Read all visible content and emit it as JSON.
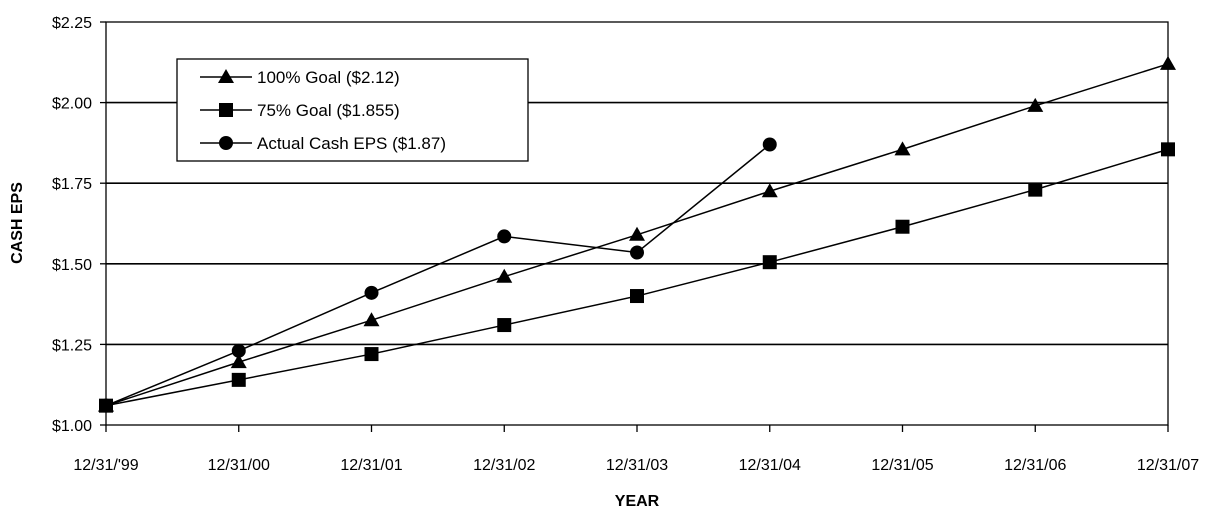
{
  "chart_data": {
    "type": "line",
    "xlabel": "YEAR",
    "ylabel": "CASH EPS",
    "categories": [
      "12/31/'99",
      "12/31/00",
      "12/31/01",
      "12/31/02",
      "12/31/03",
      "12/31/04",
      "12/31/05",
      "12/31/06",
      "12/31/07"
    ],
    "y_ticks": [
      "$1.00",
      "$1.25",
      "$1.50",
      "$1.75",
      "$2.00",
      "$2.25"
    ],
    "ylim": [
      1.0,
      2.25
    ],
    "grid": "horizontal",
    "legend_position": "top-left",
    "series": [
      {
        "name": "100% Goal ($2.12)",
        "marker": "triangle",
        "values": [
          1.06,
          1.195,
          1.325,
          1.46,
          1.59,
          1.725,
          1.855,
          1.99,
          2.12
        ]
      },
      {
        "name": "75% Goal ($1.855)",
        "marker": "square",
        "values": [
          1.06,
          1.14,
          1.22,
          1.31,
          1.4,
          1.505,
          1.615,
          1.73,
          1.855
        ]
      },
      {
        "name": "Actual Cash EPS ($1.87)",
        "marker": "circle",
        "values": [
          1.06,
          1.23,
          1.41,
          1.585,
          1.535,
          1.87,
          null,
          null,
          null
        ]
      }
    ],
    "colors": {
      "line": "#000000",
      "grid": "#000000",
      "background": "#ffffff"
    }
  }
}
